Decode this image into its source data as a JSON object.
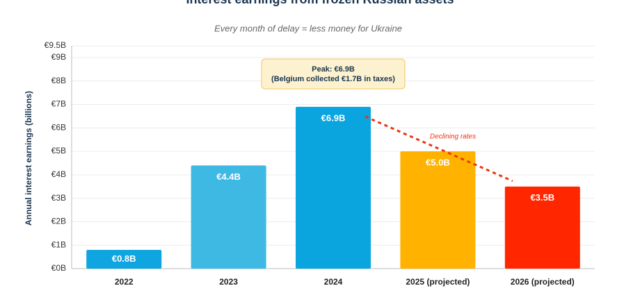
{
  "chart_data": {
    "type": "bar",
    "title": "Interest earnings from frozen Russian assets",
    "subtitle": "Every month of delay = less money for Ukraine",
    "y_label": "Annual interest earnings (billions)",
    "categories": [
      "2022",
      "2023",
      "2024",
      "2025 (projected)",
      "2026 (projected)"
    ],
    "values": [
      0.8,
      4.4,
      6.9,
      5.0,
      3.5
    ],
    "value_labels": [
      "€0.8B",
      "€4.4B",
      "€6.9B",
      "€5.0B",
      "€3.5B"
    ],
    "colors": [
      "#0ea5e0",
      "#3db9e4",
      "#0aa4df",
      "#ffb300",
      "#ff2600"
    ],
    "ylim": [
      0,
      9.5
    ],
    "yticks": [
      {
        "value": 0,
        "label": "€0B"
      },
      {
        "value": 1,
        "label": "€1B"
      },
      {
        "value": 2,
        "label": "€2B"
      },
      {
        "value": 3,
        "label": "€3B"
      },
      {
        "value": 4,
        "label": "€4B"
      },
      {
        "value": 5,
        "label": "€5B"
      },
      {
        "value": 6,
        "label": "€6B"
      },
      {
        "value": 7,
        "label": "€7B"
      },
      {
        "value": 8,
        "label": "€8B"
      },
      {
        "value": 9,
        "label": "€9B"
      },
      {
        "value": 9.5,
        "label": "€9.5B"
      }
    ],
    "grid": true,
    "annotations": {
      "peak_line1": "Peak: €6.9B",
      "peak_line2": "(Belgium collected €1.7B in taxes)",
      "trend": "Declining rates"
    }
  }
}
